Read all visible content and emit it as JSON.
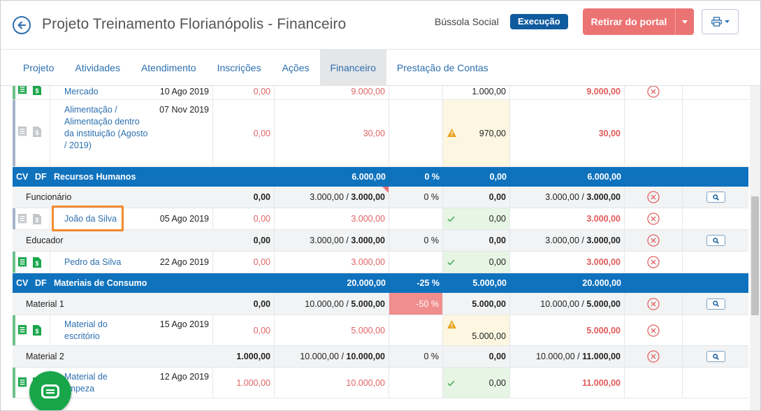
{
  "header": {
    "title": "Projeto Treinamento Florianópolis - Financeiro",
    "organization": "Bússola Social",
    "status_badge": "Execução",
    "retire_button": "Retirar do portal"
  },
  "tabs": [
    {
      "label": "Projeto"
    },
    {
      "label": "Atividades"
    },
    {
      "label": "Atendimento"
    },
    {
      "label": "Inscrições"
    },
    {
      "label": "Ações"
    },
    {
      "label": "Financeiro"
    },
    {
      "label": "Prestação de Contas"
    }
  ],
  "rows": {
    "r0": {
      "name": "Mercado",
      "date": "10 Ago 2019",
      "c1": "0,00",
      "c2": "9.000,00",
      "c4": "1.000,00",
      "c5": "9.000,00"
    },
    "r1": {
      "name": "Alimentação / Alimentação dentro da instituição (Agosto / 2019)",
      "date": "07 Nov 2019",
      "c1": "0,00",
      "c2": "30,00",
      "c4": "970,00",
      "c5": "30,00"
    },
    "sec1": {
      "cv": "CV",
      "df": "DF",
      "name": "Recursos Humanos",
      "c2": "6.000,00",
      "c3": "0 %",
      "c4": "0,00",
      "c5": "6.000,00"
    },
    "g1": {
      "name": "Funcionário",
      "c1": "0,00",
      "c2a": "3.000,00 / ",
      "c2b": "3.000,00",
      "c3": "0 %",
      "c4": "0,00",
      "c5a": "3.000,00 / ",
      "c5b": "3.000,00"
    },
    "r2": {
      "name": "João da Silva",
      "date": "05 Ago 2019",
      "c1": "0,00",
      "c2": "3.000,00",
      "c4": "0,00",
      "c5": "3.000,00"
    },
    "g2": {
      "name": "Educador",
      "c1": "0,00",
      "c2a": "3.000,00 / ",
      "c2b": "3.000,00",
      "c3": "0 %",
      "c4": "0,00",
      "c5a": "3.000,00 / ",
      "c5b": "3.000,00"
    },
    "r3": {
      "name": "Pedro da Silva",
      "date": "22 Ago 2019",
      "c1": "0,00",
      "c2": "3.000,00",
      "c4": "0,00",
      "c5": "3.000,00"
    },
    "sec2": {
      "cv": "CV",
      "df": "DF",
      "name": "Materiais de Consumo",
      "c2": "20.000,00",
      "c3": "-25 %",
      "c4": "5.000,00",
      "c5": "20.000,00"
    },
    "g3": {
      "name": "Material 1",
      "c1": "0,00",
      "c2a": "10.000,00 / ",
      "c2b": "5.000,00",
      "c3": "-50 %",
      "c4": "5.000,00",
      "c5a": "10.000,00 / ",
      "c5b": "5.000,00"
    },
    "r4": {
      "name": "Material do escritório",
      "date": "15 Ago 2019",
      "c1": "0,00",
      "c2": "5.000,00",
      "c4": "5.000,00",
      "c5": "5.000,00"
    },
    "g4": {
      "name": "Material 2",
      "c1": "1.000,00",
      "c2a": "10.000,00 / ",
      "c2b": "10.000,00",
      "c3": "0 %",
      "c4": "0,00",
      "c5a": "10.000,00 / ",
      "c5b": "11.000,00"
    },
    "r5": {
      "name": "Material de limpeza",
      "date": "12 Ago 2019",
      "c1": "1.000,00",
      "c2": "10.000,00",
      "c4": "0,00",
      "c5": "11.000,00"
    }
  },
  "colors": {
    "accent": "#0f72bd",
    "danger": "#ec7373",
    "success": "#19a64b"
  }
}
